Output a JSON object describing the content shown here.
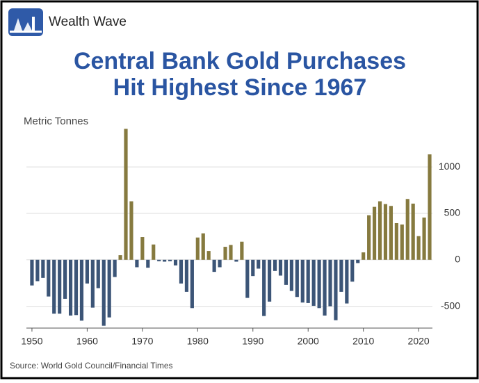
{
  "brand": "Wealth Wave",
  "chart_data": {
    "type": "bar",
    "title": [
      "Central Bank Gold Purchases",
      "Hit Highest Since 1967"
    ],
    "y_label": "Metric Tonnes",
    "source": "Source: World Gold Council/Financial Times",
    "x": [
      1950,
      1951,
      1952,
      1953,
      1954,
      1955,
      1956,
      1957,
      1958,
      1959,
      1960,
      1961,
      1962,
      1963,
      1964,
      1965,
      1966,
      1967,
      1968,
      1969,
      1970,
      1971,
      1972,
      1973,
      1974,
      1975,
      1976,
      1977,
      1978,
      1979,
      1980,
      1981,
      1982,
      1983,
      1984,
      1985,
      1986,
      1987,
      1988,
      1989,
      1990,
      1991,
      1992,
      1993,
      1994,
      1995,
      1996,
      1997,
      1998,
      1999,
      2000,
      2001,
      2002,
      2003,
      2004,
      2005,
      2006,
      2007,
      2008,
      2009,
      2010,
      2011,
      2012,
      2013,
      2014,
      2015,
      2016,
      2017,
      2018,
      2019,
      2020,
      2021,
      2022
    ],
    "values": [
      -276,
      -230,
      -195,
      -395,
      -580,
      -580,
      -420,
      -600,
      -595,
      -655,
      -255,
      -515,
      -305,
      -710,
      -620,
      -185,
      50,
      1410,
      630,
      -80,
      245,
      -85,
      165,
      -15,
      -20,
      -15,
      -60,
      -255,
      -345,
      -520,
      240,
      285,
      95,
      -130,
      -80,
      140,
      160,
      -20,
      195,
      -410,
      -175,
      -95,
      -605,
      -450,
      -120,
      -170,
      -270,
      -335,
      -400,
      -460,
      -465,
      -495,
      -520,
      -600,
      -500,
      -650,
      -345,
      -470,
      -235,
      -35,
      80,
      480,
      570,
      630,
      600,
      580,
      395,
      380,
      655,
      605,
      255,
      455,
      1135
    ],
    "color_positive": "#867a3f",
    "color_negative": "#3c5577",
    "xlim": [
      1949,
      2022.5
    ],
    "xticks": [
      1950,
      1960,
      1970,
      1980,
      1990,
      2000,
      2010,
      2020
    ],
    "ylim": [
      -720,
      1450
    ],
    "yticks": [
      -500,
      0,
      500,
      1000
    ],
    "grid": true
  }
}
